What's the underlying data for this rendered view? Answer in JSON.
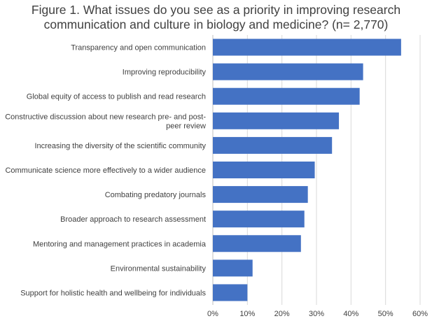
{
  "chart_data": {
    "type": "bar",
    "orientation": "horizontal",
    "title_lines": [
      "Figure 1. What issues do you see as a priority in improving research",
      "communication and culture in biology and medicine? (n= 2,770)"
    ],
    "categories": [
      [
        "Transparency and open communication"
      ],
      [
        "Improving reproducibility"
      ],
      [
        "Global equity of access to publish and read research"
      ],
      [
        "Constructive discussion about new research pre- and post-",
        "peer review"
      ],
      [
        "Increasing the diversity of the scientific community"
      ],
      [
        "Communicate science more effectively to a wider audience"
      ],
      [
        "Combating predatory journals"
      ],
      [
        "Broader approach to research assessment"
      ],
      [
        "Mentoring and management practices in academia"
      ],
      [
        "Environmental sustainability"
      ],
      [
        "Support for holistic health and wellbeing for individuals"
      ]
    ],
    "values": [
      54.5,
      43.5,
      42.5,
      36.5,
      34.5,
      29.5,
      27.5,
      26.5,
      25.5,
      11.5,
      10
    ],
    "xlim": [
      0,
      60
    ],
    "ticks": [
      "0%",
      "10%",
      "20%",
      "30%",
      "40%",
      "50%",
      "60%"
    ],
    "tick_values": [
      0,
      10,
      20,
      30,
      40,
      50,
      60
    ],
    "grid": true,
    "bar_color": "#4472C4",
    "grid_color": "#D9D9D9"
  }
}
